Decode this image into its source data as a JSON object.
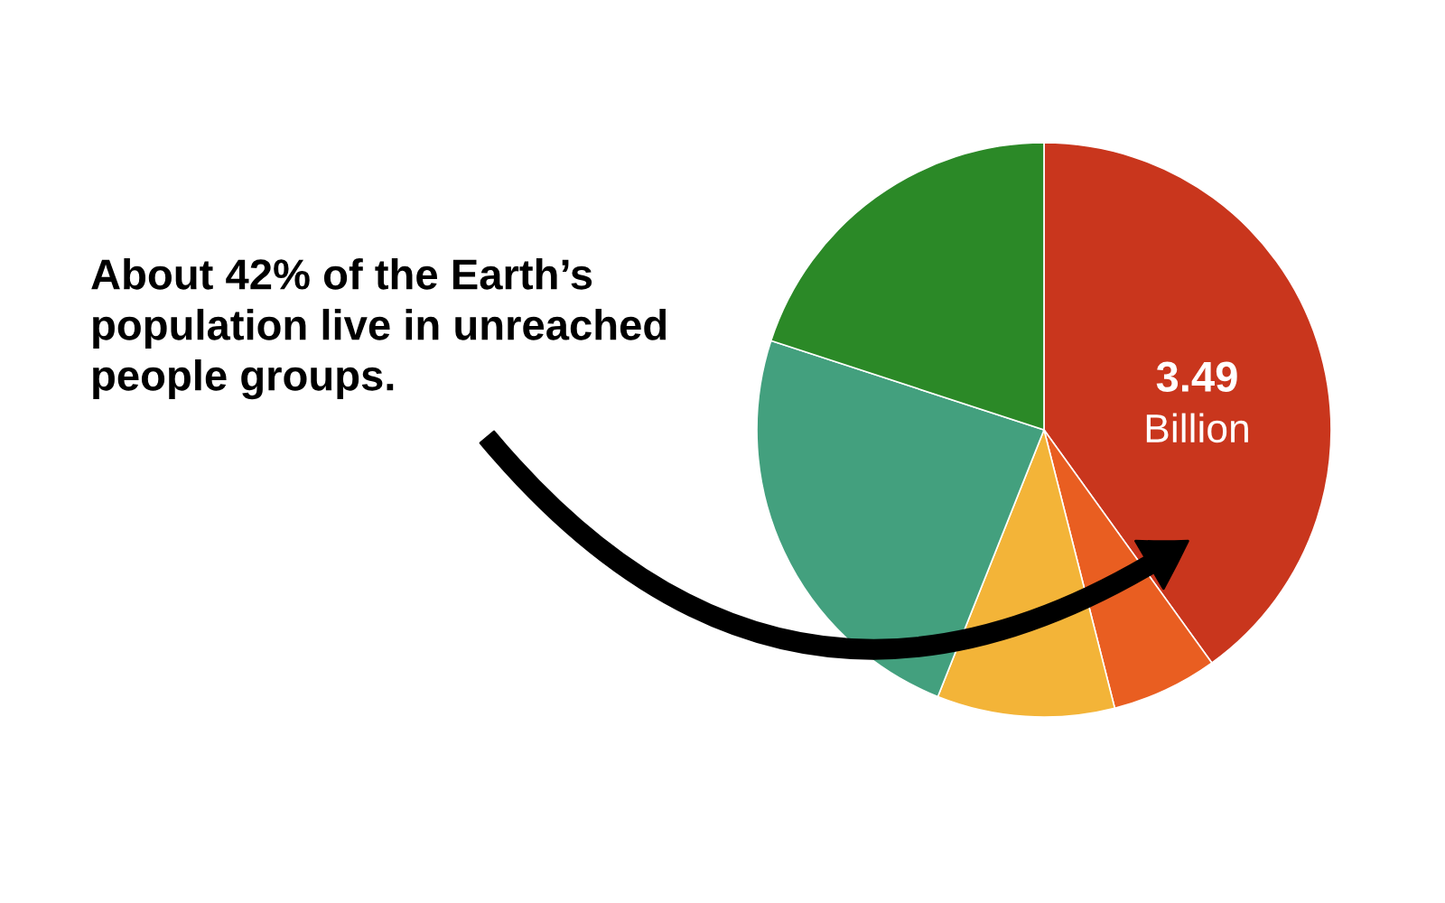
{
  "chart_data": {
    "type": "pie",
    "categories": [
      null,
      null,
      null,
      null,
      null
    ],
    "values": [
      3.49,
      0.52,
      0.87,
      2.09,
      1.74
    ],
    "colors": [
      "#c9361d",
      "#e95e21",
      "#f3b438",
      "#43a07e",
      "#2b8927"
    ],
    "value_labels": [
      "3.49\nBillion",
      null,
      null,
      null,
      null
    ],
    "annotations": [
      "About 42% of the Earth’s\npopulation live in unreached\npeople groups."
    ]
  }
}
